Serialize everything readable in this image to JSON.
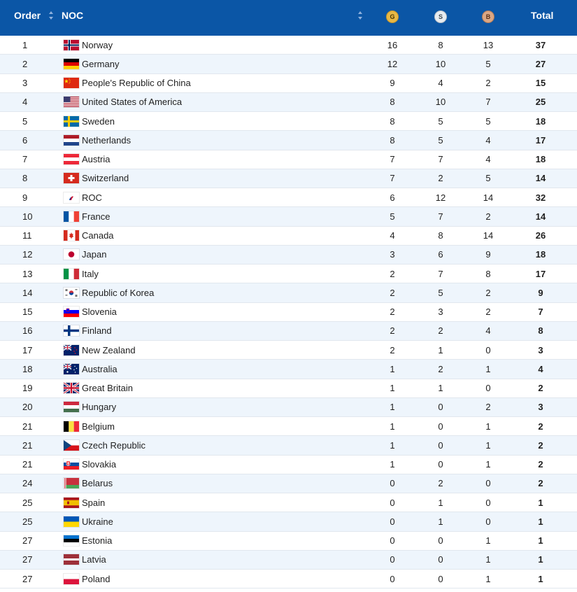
{
  "header": {
    "order_label": "Order",
    "noc_label": "NOC",
    "gold_label": "G",
    "silver_label": "S",
    "bronze_label": "B",
    "total_label": "Total"
  },
  "colors": {
    "header_bg": "#0b56a6",
    "gold": "#e8b845",
    "silver": "#e8ecf0",
    "bronze": "#dca784",
    "row_alt": "#eef5fc"
  },
  "rows": [
    {
      "order": "1",
      "noc": "Norway",
      "flag": "norway-flag",
      "gold": "16",
      "silver": "8",
      "bronze": "13",
      "total": "37"
    },
    {
      "order": "2",
      "noc": "Germany",
      "flag": "germany-flag",
      "gold": "12",
      "silver": "10",
      "bronze": "5",
      "total": "27"
    },
    {
      "order": "3",
      "noc": "People's Republic of China",
      "flag": "china-flag",
      "gold": "9",
      "silver": "4",
      "bronze": "2",
      "total": "15"
    },
    {
      "order": "4",
      "noc": "United States of America",
      "flag": "usa-flag",
      "gold": "8",
      "silver": "10",
      "bronze": "7",
      "total": "25"
    },
    {
      "order": "5",
      "noc": "Sweden",
      "flag": "sweden-flag",
      "gold": "8",
      "silver": "5",
      "bronze": "5",
      "total": "18"
    },
    {
      "order": "6",
      "noc": "Netherlands",
      "flag": "netherlands-flag",
      "gold": "8",
      "silver": "5",
      "bronze": "4",
      "total": "17"
    },
    {
      "order": "7",
      "noc": "Austria",
      "flag": "austria-flag",
      "gold": "7",
      "silver": "7",
      "bronze": "4",
      "total": "18"
    },
    {
      "order": "8",
      "noc": "Switzerland",
      "flag": "switzerland-flag",
      "gold": "7",
      "silver": "2",
      "bronze": "5",
      "total": "14"
    },
    {
      "order": "9",
      "noc": "ROC",
      "flag": "roc-flag",
      "gold": "6",
      "silver": "12",
      "bronze": "14",
      "total": "32"
    },
    {
      "order": "10",
      "noc": "France",
      "flag": "france-flag",
      "gold": "5",
      "silver": "7",
      "bronze": "2",
      "total": "14"
    },
    {
      "order": "11",
      "noc": "Canada",
      "flag": "canada-flag",
      "gold": "4",
      "silver": "8",
      "bronze": "14",
      "total": "26"
    },
    {
      "order": "12",
      "noc": "Japan",
      "flag": "japan-flag",
      "gold": "3",
      "silver": "6",
      "bronze": "9",
      "total": "18"
    },
    {
      "order": "13",
      "noc": "Italy",
      "flag": "italy-flag",
      "gold": "2",
      "silver": "7",
      "bronze": "8",
      "total": "17"
    },
    {
      "order": "14",
      "noc": "Republic of Korea",
      "flag": "korea-flag",
      "gold": "2",
      "silver": "5",
      "bronze": "2",
      "total": "9"
    },
    {
      "order": "15",
      "noc": "Slovenia",
      "flag": "slovenia-flag",
      "gold": "2",
      "silver": "3",
      "bronze": "2",
      "total": "7"
    },
    {
      "order": "16",
      "noc": "Finland",
      "flag": "finland-flag",
      "gold": "2",
      "silver": "2",
      "bronze": "4",
      "total": "8"
    },
    {
      "order": "17",
      "noc": "New Zealand",
      "flag": "new-zealand-flag",
      "gold": "2",
      "silver": "1",
      "bronze": "0",
      "total": "3"
    },
    {
      "order": "18",
      "noc": "Australia",
      "flag": "australia-flag",
      "gold": "1",
      "silver": "2",
      "bronze": "1",
      "total": "4"
    },
    {
      "order": "19",
      "noc": "Great Britain",
      "flag": "great-britain-flag",
      "gold": "1",
      "silver": "1",
      "bronze": "0",
      "total": "2"
    },
    {
      "order": "20",
      "noc": "Hungary",
      "flag": "hungary-flag",
      "gold": "1",
      "silver": "0",
      "bronze": "2",
      "total": "3"
    },
    {
      "order": "21",
      "noc": "Belgium",
      "flag": "belgium-flag",
      "gold": "1",
      "silver": "0",
      "bronze": "1",
      "total": "2"
    },
    {
      "order": "21",
      "noc": "Czech Republic",
      "flag": "czech-flag",
      "gold": "1",
      "silver": "0",
      "bronze": "1",
      "total": "2"
    },
    {
      "order": "21",
      "noc": "Slovakia",
      "flag": "slovakia-flag",
      "gold": "1",
      "silver": "0",
      "bronze": "1",
      "total": "2"
    },
    {
      "order": "24",
      "noc": "Belarus",
      "flag": "belarus-flag",
      "gold": "0",
      "silver": "2",
      "bronze": "0",
      "total": "2"
    },
    {
      "order": "25",
      "noc": "Spain",
      "flag": "spain-flag",
      "gold": "0",
      "silver": "1",
      "bronze": "0",
      "total": "1"
    },
    {
      "order": "25",
      "noc": "Ukraine",
      "flag": "ukraine-flag",
      "gold": "0",
      "silver": "1",
      "bronze": "0",
      "total": "1"
    },
    {
      "order": "27",
      "noc": "Estonia",
      "flag": "estonia-flag",
      "gold": "0",
      "silver": "0",
      "bronze": "1",
      "total": "1"
    },
    {
      "order": "27",
      "noc": "Latvia",
      "flag": "latvia-flag",
      "gold": "0",
      "silver": "0",
      "bronze": "1",
      "total": "1"
    },
    {
      "order": "27",
      "noc": "Poland",
      "flag": "poland-flag",
      "gold": "0",
      "silver": "0",
      "bronze": "1",
      "total": "1"
    }
  ]
}
